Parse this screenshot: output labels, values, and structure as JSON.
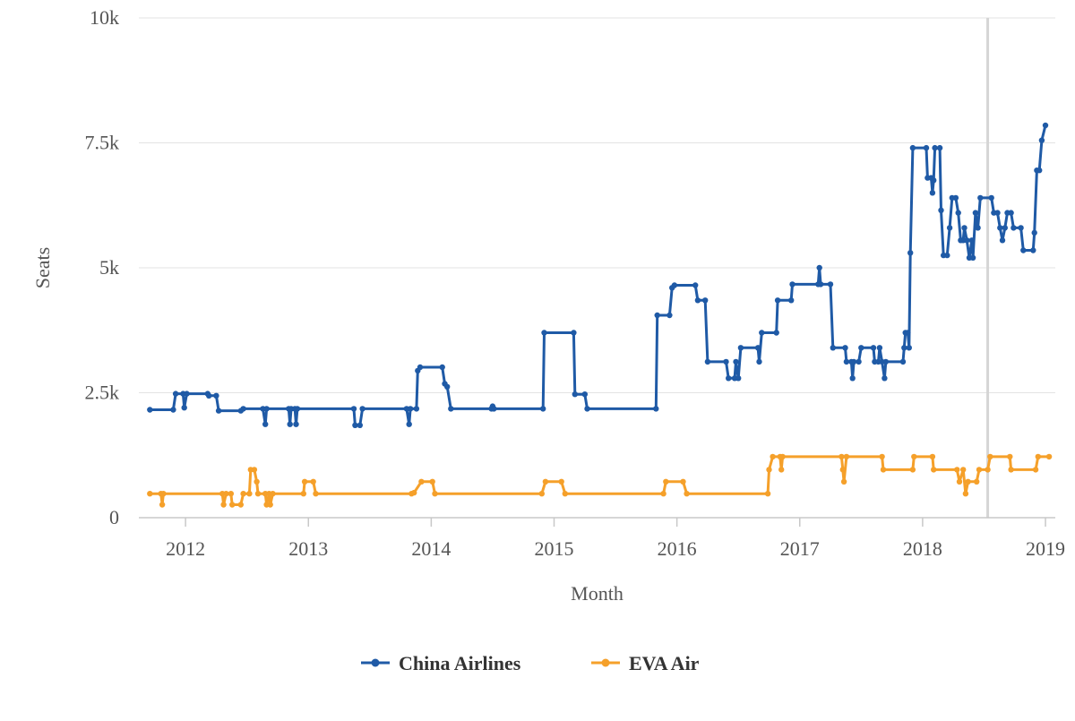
{
  "chart_data": {
    "type": "line",
    "title": "",
    "xlabel": "Month",
    "ylabel": "Seats",
    "xlim": [
      2011.62,
      2019.08
    ],
    "ylim": [
      0,
      10000
    ],
    "x_ticks": [
      2012,
      2013,
      2014,
      2015,
      2016,
      2017,
      2018,
      2019
    ],
    "x_tick_labels": [
      "2012",
      "2013",
      "2014",
      "2015",
      "2016",
      "2017",
      "2018",
      "2019"
    ],
    "y_ticks": [
      0,
      2500,
      5000,
      7500,
      10000
    ],
    "y_tick_labels": [
      "0",
      "2.5k",
      "5k",
      "7.5k",
      "10k"
    ],
    "grid": "horizontal",
    "highlight_x": 2018.53,
    "legend": "bottom-center",
    "series": [
      {
        "name": "China Airlines",
        "color": "#1f5aa6",
        "points": [
          [
            2011.71,
            2160
          ],
          [
            2011.9,
            2160
          ],
          [
            2011.92,
            2480
          ],
          [
            2011.98,
            2480
          ],
          [
            2011.99,
            2200
          ],
          [
            2012.01,
            2480
          ],
          [
            2012.18,
            2480
          ],
          [
            2012.19,
            2440
          ],
          [
            2012.25,
            2440
          ],
          [
            2012.27,
            2140
          ],
          [
            2012.45,
            2140
          ],
          [
            2012.47,
            2180
          ],
          [
            2012.63,
            2180
          ],
          [
            2012.65,
            1870
          ],
          [
            2012.66,
            2180
          ],
          [
            2012.84,
            2180
          ],
          [
            2012.85,
            1870
          ],
          [
            2012.86,
            2180
          ],
          [
            2012.89,
            2180
          ],
          [
            2012.9,
            1870
          ],
          [
            2012.91,
            2180
          ],
          [
            2013.37,
            2180
          ],
          [
            2013.38,
            1850
          ],
          [
            2013.42,
            1850
          ],
          [
            2013.44,
            2180
          ],
          [
            2013.8,
            2180
          ],
          [
            2013.82,
            1870
          ],
          [
            2013.83,
            2180
          ],
          [
            2013.88,
            2180
          ],
          [
            2013.89,
            2940
          ],
          [
            2013.91,
            3010
          ],
          [
            2014.09,
            3010
          ],
          [
            2014.11,
            2680
          ],
          [
            2014.13,
            2620
          ],
          [
            2014.16,
            2180
          ],
          [
            2014.49,
            2180
          ],
          [
            2014.5,
            2230
          ],
          [
            2014.51,
            2180
          ],
          [
            2014.91,
            2180
          ],
          [
            2014.92,
            3700
          ],
          [
            2015.16,
            3700
          ],
          [
            2015.17,
            2470
          ],
          [
            2015.25,
            2470
          ],
          [
            2015.27,
            2180
          ],
          [
            2015.83,
            2180
          ],
          [
            2015.84,
            4050
          ],
          [
            2015.94,
            4050
          ],
          [
            2015.96,
            4600
          ],
          [
            2015.98,
            4650
          ],
          [
            2016.15,
            4650
          ],
          [
            2016.17,
            4350
          ],
          [
            2016.23,
            4350
          ],
          [
            2016.25,
            3120
          ],
          [
            2016.4,
            3120
          ],
          [
            2016.42,
            2790
          ],
          [
            2016.47,
            2790
          ],
          [
            2016.48,
            3120
          ],
          [
            2016.5,
            2790
          ],
          [
            2016.52,
            3400
          ],
          [
            2016.66,
            3400
          ],
          [
            2016.67,
            3120
          ],
          [
            2016.69,
            3700
          ],
          [
            2016.81,
            3700
          ],
          [
            2016.82,
            4350
          ],
          [
            2016.93,
            4350
          ],
          [
            2016.94,
            4670
          ],
          [
            2017.15,
            4670
          ],
          [
            2017.16,
            5000
          ],
          [
            2017.17,
            4670
          ],
          [
            2017.25,
            4670
          ],
          [
            2017.27,
            3400
          ],
          [
            2017.37,
            3400
          ],
          [
            2017.38,
            3120
          ],
          [
            2017.42,
            3120
          ],
          [
            2017.43,
            2790
          ],
          [
            2017.44,
            3120
          ],
          [
            2017.48,
            3120
          ],
          [
            2017.5,
            3400
          ],
          [
            2017.6,
            3400
          ],
          [
            2017.61,
            3120
          ],
          [
            2017.64,
            3120
          ],
          [
            2017.65,
            3400
          ],
          [
            2017.67,
            3120
          ],
          [
            2017.69,
            2790
          ],
          [
            2017.7,
            3120
          ],
          [
            2017.84,
            3120
          ],
          [
            2017.85,
            3400
          ],
          [
            2017.86,
            3700
          ],
          [
            2017.88,
            3700
          ],
          [
            2017.89,
            3400
          ],
          [
            2017.9,
            5300
          ],
          [
            2017.92,
            7400
          ],
          [
            2018.03,
            7400
          ],
          [
            2018.04,
            6800
          ],
          [
            2018.07,
            6800
          ],
          [
            2018.08,
            6500
          ],
          [
            2018.09,
            6750
          ],
          [
            2018.1,
            7400
          ],
          [
            2018.14,
            7400
          ],
          [
            2018.15,
            6150
          ],
          [
            2018.17,
            5250
          ],
          [
            2018.2,
            5250
          ],
          [
            2018.22,
            5800
          ],
          [
            2018.24,
            6400
          ],
          [
            2018.27,
            6400
          ],
          [
            2018.29,
            6100
          ],
          [
            2018.31,
            5550
          ],
          [
            2018.33,
            5550
          ],
          [
            2018.34,
            5800
          ],
          [
            2018.36,
            5550
          ],
          [
            2018.38,
            5200
          ],
          [
            2018.4,
            5550
          ],
          [
            2018.41,
            5200
          ],
          [
            2018.43,
            6100
          ],
          [
            2018.45,
            5800
          ],
          [
            2018.47,
            6400
          ],
          [
            2018.56,
            6400
          ],
          [
            2018.58,
            6100
          ],
          [
            2018.61,
            6100
          ],
          [
            2018.63,
            5800
          ],
          [
            2018.65,
            5550
          ],
          [
            2018.67,
            5800
          ],
          [
            2018.69,
            6100
          ],
          [
            2018.72,
            6100
          ],
          [
            2018.74,
            5800
          ],
          [
            2018.8,
            5800
          ],
          [
            2018.82,
            5350
          ],
          [
            2018.9,
            5350
          ],
          [
            2018.91,
            5700
          ],
          [
            2018.93,
            6950
          ],
          [
            2018.95,
            6950
          ],
          [
            2018.97,
            7550
          ],
          [
            2019.0,
            7850
          ]
        ]
      },
      {
        "name": "EVA Air",
        "color": "#f5a02a",
        "points": [
          [
            2011.71,
            480
          ],
          [
            2011.8,
            480
          ],
          [
            2011.81,
            260
          ],
          [
            2011.82,
            480
          ],
          [
            2012.3,
            480
          ],
          [
            2012.31,
            260
          ],
          [
            2012.33,
            480
          ],
          [
            2012.37,
            480
          ],
          [
            2012.38,
            260
          ],
          [
            2012.45,
            260
          ],
          [
            2012.47,
            480
          ],
          [
            2012.52,
            480
          ],
          [
            2012.53,
            960
          ],
          [
            2012.56,
            960
          ],
          [
            2012.58,
            720
          ],
          [
            2012.59,
            480
          ],
          [
            2012.65,
            480
          ],
          [
            2012.66,
            260
          ],
          [
            2012.68,
            480
          ],
          [
            2012.69,
            260
          ],
          [
            2012.71,
            480
          ],
          [
            2012.96,
            480
          ],
          [
            2012.97,
            720
          ],
          [
            2013.04,
            720
          ],
          [
            2013.06,
            480
          ],
          [
            2013.84,
            480
          ],
          [
            2013.86,
            500
          ],
          [
            2013.92,
            720
          ],
          [
            2014.01,
            720
          ],
          [
            2014.03,
            480
          ],
          [
            2014.9,
            480
          ],
          [
            2014.93,
            720
          ],
          [
            2015.06,
            720
          ],
          [
            2015.09,
            480
          ],
          [
            2015.89,
            480
          ],
          [
            2015.91,
            720
          ],
          [
            2016.05,
            720
          ],
          [
            2016.08,
            480
          ],
          [
            2016.74,
            480
          ],
          [
            2016.75,
            960
          ],
          [
            2016.78,
            1220
          ],
          [
            2016.84,
            1220
          ],
          [
            2016.85,
            960
          ],
          [
            2016.86,
            1220
          ],
          [
            2017.34,
            1220
          ],
          [
            2017.35,
            960
          ],
          [
            2017.36,
            720
          ],
          [
            2017.38,
            1220
          ],
          [
            2017.67,
            1220
          ],
          [
            2017.68,
            960
          ],
          [
            2017.92,
            960
          ],
          [
            2017.93,
            1220
          ],
          [
            2018.08,
            1220
          ],
          [
            2018.09,
            960
          ],
          [
            2018.28,
            960
          ],
          [
            2018.3,
            720
          ],
          [
            2018.33,
            960
          ],
          [
            2018.35,
            480
          ],
          [
            2018.37,
            720
          ],
          [
            2018.44,
            720
          ],
          [
            2018.46,
            960
          ],
          [
            2018.53,
            960
          ],
          [
            2018.55,
            1220
          ],
          [
            2018.71,
            1220
          ],
          [
            2018.72,
            960
          ],
          [
            2018.92,
            960
          ],
          [
            2018.94,
            1220
          ],
          [
            2019.03,
            1220
          ]
        ]
      }
    ]
  }
}
